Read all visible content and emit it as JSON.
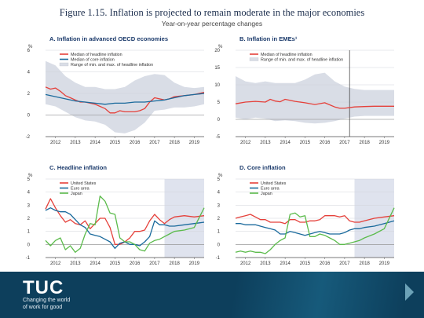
{
  "figure": {
    "title": "Figure 1.15.  Inflation is projected to remain moderate in the major economies",
    "subtitle": "Year-on-year percentage changes"
  },
  "footer": {
    "logo": "TUC",
    "tagline_line1": "Changing the world",
    "tagline_line2": "of work for good"
  },
  "colors": {
    "red": "#e5403a",
    "blue": "#1a6a9c",
    "green": "#5bbb4b",
    "band": "#d9dde6",
    "projection": "#dfe3ee",
    "footer_bg": "#0d3f5c"
  },
  "chart_data": [
    {
      "type": "line",
      "title": "A. Inflation in advanced OECD economies",
      "ylabel": "%",
      "ylim": [
        -2,
        6
      ],
      "yticks": [
        -2,
        0,
        2,
        4,
        6
      ],
      "xlim": [
        2011.5,
        2019.5
      ],
      "xticks": [
        2012,
        2013,
        2014,
        2015,
        2016,
        2017,
        2018,
        2019
      ],
      "legend": [
        "Median of headline inflation",
        "Median of core inflation",
        "Range of min. and max. of headline inflation"
      ],
      "band": {
        "x": [
          2011.5,
          2012,
          2012.5,
          2013,
          2013.5,
          2014,
          2014.5,
          2015,
          2015.5,
          2016,
          2016.5,
          2017,
          2017.5,
          2018,
          2018.5,
          2019,
          2019.5
        ],
        "min": [
          1.0,
          0.8,
          0.3,
          -0.2,
          -0.5,
          -0.6,
          -0.9,
          -1.6,
          -1.7,
          -1.4,
          -0.7,
          0.4,
          0.5,
          0.7,
          0.7,
          0.8,
          1.0
        ],
        "max": [
          5.0,
          4.6,
          3.6,
          3.0,
          2.6,
          2.6,
          2.4,
          2.4,
          2.6,
          3.2,
          3.6,
          3.8,
          3.7,
          3.0,
          2.6,
          2.5,
          2.6
        ]
      },
      "series": [
        {
          "name": "Median of headline inflation",
          "color": "red",
          "x": [
            2011.5,
            2011.75,
            2012,
            2012.25,
            2012.5,
            2012.75,
            2013,
            2013.25,
            2013.5,
            2013.75,
            2014,
            2014.25,
            2014.5,
            2014.75,
            2015,
            2015.25,
            2015.5,
            2015.75,
            2016,
            2016.25,
            2016.5,
            2016.75,
            2017,
            2017.25,
            2017.5,
            2017.75,
            2018,
            2018.5,
            2019,
            2019.5
          ],
          "y": [
            2.6,
            2.4,
            2.5,
            2.2,
            1.8,
            1.6,
            1.4,
            1.2,
            1.2,
            1.1,
            1.0,
            0.8,
            0.6,
            0.2,
            0.2,
            0.4,
            0.3,
            0.3,
            0.3,
            0.4,
            0.6,
            1.2,
            1.6,
            1.5,
            1.4,
            1.5,
            1.7,
            1.8,
            1.9,
            2.1
          ]
        },
        {
          "name": "Median of core inflation",
          "color": "blue",
          "x": [
            2011.5,
            2012,
            2012.5,
            2013,
            2013.5,
            2014,
            2014.5,
            2015,
            2015.5,
            2016,
            2016.5,
            2017,
            2017.5,
            2018,
            2018.5,
            2019,
            2019.5
          ],
          "y": [
            1.9,
            1.7,
            1.5,
            1.3,
            1.2,
            1.1,
            1.0,
            1.1,
            1.1,
            1.2,
            1.2,
            1.3,
            1.4,
            1.6,
            1.8,
            1.9,
            2.0
          ]
        }
      ]
    },
    {
      "type": "line",
      "title": "B. Inflation in EMEs¹",
      "ylabel": "%",
      "ylim": [
        -5,
        20
      ],
      "yticks": [
        -5,
        0,
        5,
        10,
        15,
        20
      ],
      "xlim": [
        2011.5,
        2019.5
      ],
      "xticks": [
        2012,
        2013,
        2014,
        2015,
        2016,
        2017,
        2018,
        2019
      ],
      "legend": [
        "Median of headline inflation",
        "Range of min. and max. of headline inflation"
      ],
      "vline": 2017.25,
      "band": {
        "x": [
          2011.5,
          2012,
          2012.5,
          2013,
          2013.5,
          2014,
          2014.5,
          2015,
          2015.5,
          2016,
          2016.5,
          2017,
          2017.5,
          2018,
          2018.5,
          2019,
          2019.5
        ],
        "min": [
          0.5,
          0.0,
          0.5,
          0.2,
          -0.5,
          -0.3,
          -0.5,
          -1.0,
          -1.2,
          -1.0,
          -0.5,
          0.2,
          0.8,
          1.0,
          1.0,
          1.0,
          1.0
        ],
        "max": [
          12.5,
          11.0,
          10.5,
          11.0,
          10.5,
          10.5,
          10.5,
          11.5,
          13.0,
          13.5,
          11.0,
          9.5,
          8.8,
          8.5,
          8.5,
          8.5,
          8.5
        ]
      },
      "series": [
        {
          "name": "Median of headline inflation",
          "color": "red",
          "x": [
            2011.5,
            2012,
            2012.5,
            2013,
            2013.25,
            2013.5,
            2013.75,
            2014,
            2014.5,
            2015,
            2015.5,
            2016,
            2016.25,
            2016.5,
            2016.75,
            2017,
            2017.5,
            2018,
            2018.5,
            2019,
            2019.5
          ],
          "y": [
            4.5,
            5.0,
            5.2,
            5.0,
            5.8,
            5.3,
            5.1,
            5.8,
            5.2,
            4.8,
            4.3,
            4.8,
            4.2,
            3.6,
            3.2,
            3.2,
            3.6,
            3.7,
            3.8,
            3.8,
            3.8
          ]
        }
      ]
    },
    {
      "type": "line",
      "title": "C. Headline inflation",
      "ylabel": "%",
      "ylim": [
        -1,
        5
      ],
      "yticks": [
        -1,
        0,
        1,
        2,
        3,
        4,
        5
      ],
      "xlim": [
        2011.5,
        2019.5
      ],
      "xticks": [
        2012,
        2013,
        2014,
        2015,
        2016,
        2017,
        2018,
        2019
      ],
      "legend": [
        "United States",
        "Euro area",
        "Japan"
      ],
      "projection_from": 2017.5,
      "series": [
        {
          "name": "United States",
          "color": "red",
          "x": [
            2011.5,
            2011.75,
            2012,
            2012.25,
            2012.5,
            2012.75,
            2013,
            2013.25,
            2013.5,
            2013.75,
            2014,
            2014.25,
            2014.5,
            2014.75,
            2015,
            2015.25,
            2015.5,
            2015.75,
            2016,
            2016.25,
            2016.5,
            2016.75,
            2017,
            2017.25,
            2017.5,
            2017.75,
            2018,
            2018.5,
            2019,
            2019.5
          ],
          "y": [
            2.7,
            3.5,
            2.8,
            2.2,
            1.7,
            1.9,
            1.6,
            1.5,
            1.8,
            1.2,
            1.6,
            2.0,
            2.0,
            1.3,
            0.0,
            0.0,
            0.2,
            0.5,
            1.0,
            1.0,
            1.1,
            1.8,
            2.3,
            1.9,
            1.6,
            1.9,
            2.1,
            2.2,
            2.1,
            2.2
          ]
        },
        {
          "name": "Euro area",
          "color": "blue",
          "x": [
            2011.5,
            2011.75,
            2012,
            2012.25,
            2012.5,
            2012.75,
            2013,
            2013.25,
            2013.5,
            2013.75,
            2014,
            2014.25,
            2014.5,
            2014.75,
            2015,
            2015.25,
            2015.5,
            2015.75,
            2016,
            2016.25,
            2016.5,
            2016.75,
            2017,
            2017.25,
            2017.5,
            2017.75,
            2018,
            2018.5,
            2019,
            2019.5
          ],
          "y": [
            2.6,
            2.8,
            2.6,
            2.5,
            2.5,
            2.3,
            1.9,
            1.5,
            1.3,
            0.8,
            0.7,
            0.6,
            0.4,
            0.2,
            -0.3,
            0.1,
            0.2,
            0.0,
            0.0,
            -0.1,
            0.2,
            0.6,
            1.8,
            1.5,
            1.5,
            1.4,
            1.4,
            1.5,
            1.6,
            1.7
          ]
        },
        {
          "name": "Japan",
          "color": "green",
          "x": [
            2011.5,
            2011.75,
            2012,
            2012.25,
            2012.5,
            2012.75,
            2013,
            2013.25,
            2013.5,
            2013.75,
            2014,
            2014.25,
            2014.5,
            2014.75,
            2015,
            2015.25,
            2015.5,
            2015.75,
            2016,
            2016.25,
            2016.5,
            2016.75,
            2017,
            2017.25,
            2017.5,
            2017.75,
            2018,
            2018.5,
            2019,
            2019.5
          ],
          "y": [
            0.3,
            -0.1,
            0.3,
            0.5,
            -0.4,
            -0.1,
            -0.6,
            -0.3,
            0.8,
            1.6,
            1.5,
            3.7,
            3.3,
            2.4,
            2.3,
            0.5,
            0.2,
            0.2,
            0.0,
            -0.4,
            -0.5,
            0.1,
            0.3,
            0.4,
            0.6,
            0.8,
            1.0,
            1.1,
            1.3,
            2.8
          ]
        }
      ]
    },
    {
      "type": "line",
      "title": "D. Core inflation",
      "ylabel": "%",
      "ylim": [
        -1,
        5
      ],
      "yticks": [
        -1,
        0,
        1,
        2,
        3,
        4,
        5
      ],
      "xlim": [
        2011.5,
        2019.5
      ],
      "xticks": [
        2012,
        2013,
        2014,
        2015,
        2016,
        2017,
        2018,
        2019
      ],
      "legend": [
        "United States",
        "Euro area",
        "Japan"
      ],
      "projection_from": 2017.5,
      "series": [
        {
          "name": "United States",
          "color": "red",
          "x": [
            2011.5,
            2011.75,
            2012,
            2012.25,
            2012.5,
            2012.75,
            2013,
            2013.25,
            2013.5,
            2013.75,
            2014,
            2014.25,
            2014.5,
            2014.75,
            2015,
            2015.25,
            2015.5,
            2015.75,
            2016,
            2016.25,
            2016.5,
            2016.75,
            2017,
            2017.25,
            2017.5,
            2017.75,
            2018,
            2018.5,
            2019,
            2019.5
          ],
          "y": [
            2.0,
            2.1,
            2.2,
            2.3,
            2.1,
            1.9,
            1.9,
            1.7,
            1.7,
            1.7,
            1.6,
            1.9,
            1.9,
            1.7,
            1.7,
            1.8,
            1.8,
            1.9,
            2.2,
            2.2,
            2.2,
            2.1,
            2.2,
            1.8,
            1.7,
            1.7,
            1.8,
            2.0,
            2.1,
            2.2
          ]
        },
        {
          "name": "Euro area",
          "color": "blue",
          "x": [
            2011.5,
            2011.75,
            2012,
            2012.25,
            2012.5,
            2012.75,
            2013,
            2013.25,
            2013.5,
            2013.75,
            2014,
            2014.25,
            2014.5,
            2014.75,
            2015,
            2015.25,
            2015.5,
            2015.75,
            2016,
            2016.25,
            2016.5,
            2016.75,
            2017,
            2017.25,
            2017.5,
            2017.75,
            2018,
            2018.5,
            2019,
            2019.5
          ],
          "y": [
            1.6,
            1.6,
            1.5,
            1.5,
            1.5,
            1.4,
            1.3,
            1.2,
            1.1,
            0.8,
            0.8,
            1.0,
            0.9,
            0.8,
            0.7,
            0.8,
            0.9,
            1.0,
            0.9,
            0.8,
            0.8,
            0.8,
            0.9,
            1.1,
            1.2,
            1.2,
            1.3,
            1.4,
            1.6,
            1.8
          ]
        },
        {
          "name": "Japan",
          "color": "green",
          "x": [
            2011.5,
            2011.75,
            2012,
            2012.25,
            2012.5,
            2012.75,
            2013,
            2013.25,
            2013.5,
            2013.75,
            2014,
            2014.25,
            2014.5,
            2014.75,
            2015,
            2015.25,
            2015.5,
            2015.75,
            2016,
            2016.25,
            2016.5,
            2016.75,
            2017,
            2017.25,
            2017.5,
            2017.75,
            2018,
            2018.5,
            2019,
            2019.5
          ],
          "y": [
            -0.6,
            -0.5,
            -0.6,
            -0.5,
            -0.6,
            -0.6,
            -0.7,
            -0.4,
            0.0,
            0.3,
            0.5,
            2.3,
            2.4,
            2.1,
            2.2,
            0.6,
            0.6,
            0.8,
            0.7,
            0.5,
            0.3,
            0.0,
            0.0,
            0.1,
            0.2,
            0.3,
            0.5,
            0.8,
            1.2,
            2.8
          ]
        }
      ]
    }
  ]
}
